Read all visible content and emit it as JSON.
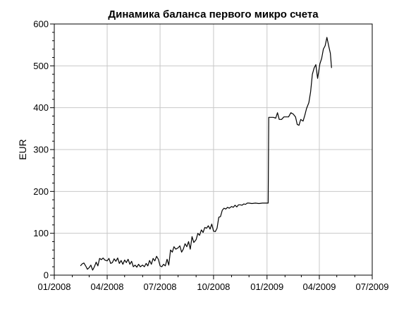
{
  "chart_data": {
    "type": "line",
    "title": "Динамика баланса первого микро счета",
    "xlabel": "",
    "ylabel": "EUR",
    "grid": true,
    "x_range": [
      "2008-01-01",
      "2009-07-01"
    ],
    "ylim": [
      0,
      600
    ],
    "x_ticks": [
      {
        "date": "2008-01-01",
        "label": "01/2008"
      },
      {
        "date": "2008-04-01",
        "label": "04/2008"
      },
      {
        "date": "2008-07-01",
        "label": "07/2008"
      },
      {
        "date": "2008-10-01",
        "label": "10/2008"
      },
      {
        "date": "2009-01-01",
        "label": "01/2009"
      },
      {
        "date": "2009-04-01",
        "label": "04/2009"
      },
      {
        "date": "2009-07-01",
        "label": "07/2009"
      }
    ],
    "y_ticks": [
      0,
      100,
      200,
      300,
      400,
      500,
      600
    ],
    "series": [
      {
        "color": "#000000",
        "points": [
          [
            "2008-02-15",
            22
          ],
          [
            "2008-02-18",
            27
          ],
          [
            "2008-02-21",
            29
          ],
          [
            "2008-02-24",
            22
          ],
          [
            "2008-02-27",
            14
          ],
          [
            "2008-03-01",
            18
          ],
          [
            "2008-03-04",
            24
          ],
          [
            "2008-03-07",
            12
          ],
          [
            "2008-03-10",
            20
          ],
          [
            "2008-03-13",
            31
          ],
          [
            "2008-03-16",
            22
          ],
          [
            "2008-03-19",
            40
          ],
          [
            "2008-03-22",
            37
          ],
          [
            "2008-03-25",
            41
          ],
          [
            "2008-03-28",
            36
          ],
          [
            "2008-04-01",
            34
          ],
          [
            "2008-04-04",
            40
          ],
          [
            "2008-04-07",
            28
          ],
          [
            "2008-04-10",
            30
          ],
          [
            "2008-04-13",
            39
          ],
          [
            "2008-04-16",
            33
          ],
          [
            "2008-04-19",
            41
          ],
          [
            "2008-04-22",
            28
          ],
          [
            "2008-04-25",
            35
          ],
          [
            "2008-04-28",
            26
          ],
          [
            "2008-05-01",
            36
          ],
          [
            "2008-05-04",
            30
          ],
          [
            "2008-05-07",
            38
          ],
          [
            "2008-05-10",
            26
          ],
          [
            "2008-05-13",
            33
          ],
          [
            "2008-05-16",
            20
          ],
          [
            "2008-05-19",
            24
          ],
          [
            "2008-05-22",
            19
          ],
          [
            "2008-05-25",
            26
          ],
          [
            "2008-05-28",
            20
          ],
          [
            "2008-06-01",
            24
          ],
          [
            "2008-06-04",
            20
          ],
          [
            "2008-06-07",
            28
          ],
          [
            "2008-06-10",
            22
          ],
          [
            "2008-06-13",
            35
          ],
          [
            "2008-06-16",
            26
          ],
          [
            "2008-06-19",
            40
          ],
          [
            "2008-06-22",
            34
          ],
          [
            "2008-06-25",
            45
          ],
          [
            "2008-06-28",
            38
          ],
          [
            "2008-07-01",
            22
          ],
          [
            "2008-07-04",
            20
          ],
          [
            "2008-07-07",
            26
          ],
          [
            "2008-07-10",
            22
          ],
          [
            "2008-07-13",
            38
          ],
          [
            "2008-07-16",
            24
          ],
          [
            "2008-07-19",
            60
          ],
          [
            "2008-07-22",
            55
          ],
          [
            "2008-07-25",
            68
          ],
          [
            "2008-07-28",
            62
          ],
          [
            "2008-08-01",
            65
          ],
          [
            "2008-08-04",
            70
          ],
          [
            "2008-08-07",
            55
          ],
          [
            "2008-08-10",
            62
          ],
          [
            "2008-08-13",
            75
          ],
          [
            "2008-08-16",
            68
          ],
          [
            "2008-08-19",
            80
          ],
          [
            "2008-08-22",
            62
          ],
          [
            "2008-08-25",
            92
          ],
          [
            "2008-08-28",
            78
          ],
          [
            "2008-09-01",
            85
          ],
          [
            "2008-09-04",
            100
          ],
          [
            "2008-09-07",
            95
          ],
          [
            "2008-09-10",
            108
          ],
          [
            "2008-09-13",
            102
          ],
          [
            "2008-09-16",
            114
          ],
          [
            "2008-09-19",
            112
          ],
          [
            "2008-09-22",
            118
          ],
          [
            "2008-09-25",
            110
          ],
          [
            "2008-09-28",
            122
          ],
          [
            "2008-10-01",
            105
          ],
          [
            "2008-10-04",
            104
          ],
          [
            "2008-10-07",
            112
          ],
          [
            "2008-10-10",
            138
          ],
          [
            "2008-10-13",
            140
          ],
          [
            "2008-10-16",
            155
          ],
          [
            "2008-10-19",
            160
          ],
          [
            "2008-10-22",
            158
          ],
          [
            "2008-10-25",
            162
          ],
          [
            "2008-10-28",
            160
          ],
          [
            "2008-11-01",
            164
          ],
          [
            "2008-11-04",
            162
          ],
          [
            "2008-11-07",
            167
          ],
          [
            "2008-11-10",
            163
          ],
          [
            "2008-11-13",
            168
          ],
          [
            "2008-11-16",
            168
          ],
          [
            "2008-11-19",
            167
          ],
          [
            "2008-11-22",
            170
          ],
          [
            "2008-11-25",
            169
          ],
          [
            "2008-11-28",
            172
          ],
          [
            "2008-12-01",
            172
          ],
          [
            "2008-12-06",
            171
          ],
          [
            "2008-12-12",
            172
          ],
          [
            "2008-12-18",
            171
          ],
          [
            "2008-12-24",
            172
          ],
          [
            "2008-12-30",
            172
          ],
          [
            "2009-01-03",
            172
          ],
          [
            "2009-01-04",
            377
          ],
          [
            "2009-01-08",
            377
          ],
          [
            "2009-01-12",
            377
          ],
          [
            "2009-01-16",
            375
          ],
          [
            "2009-01-19",
            388
          ],
          [
            "2009-01-22",
            372
          ],
          [
            "2009-01-26",
            372
          ],
          [
            "2009-01-30",
            378
          ],
          [
            "2009-02-03",
            378
          ],
          [
            "2009-02-07",
            378
          ],
          [
            "2009-02-11",
            388
          ],
          [
            "2009-02-15",
            385
          ],
          [
            "2009-02-19",
            378
          ],
          [
            "2009-02-22",
            360
          ],
          [
            "2009-02-25",
            358
          ],
          [
            "2009-02-28",
            372
          ],
          [
            "2009-03-04",
            368
          ],
          [
            "2009-03-07",
            382
          ],
          [
            "2009-03-10",
            398
          ],
          [
            "2009-03-14",
            412
          ],
          [
            "2009-03-17",
            438
          ],
          [
            "2009-03-20",
            480
          ],
          [
            "2009-03-23",
            495
          ],
          [
            "2009-03-26",
            503
          ],
          [
            "2009-03-29",
            470
          ],
          [
            "2009-04-02",
            505
          ],
          [
            "2009-04-05",
            518
          ],
          [
            "2009-04-08",
            540
          ],
          [
            "2009-04-11",
            548
          ],
          [
            "2009-04-14",
            568
          ],
          [
            "2009-04-17",
            548
          ],
          [
            "2009-04-20",
            530
          ],
          [
            "2009-04-22",
            495
          ]
        ]
      }
    ]
  }
}
